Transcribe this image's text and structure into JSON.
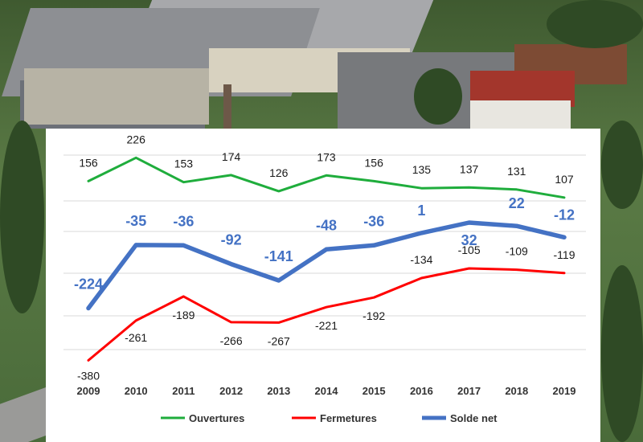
{
  "chart_data": {
    "type": "line",
    "categories": [
      "2009",
      "2010",
      "2011",
      "2012",
      "2013",
      "2014",
      "2015",
      "2016",
      "2017",
      "2018",
      "2019"
    ],
    "series": [
      {
        "name": "Ouvertures",
        "color": "#1fad3c",
        "values": [
          156,
          226,
          153,
          174,
          126,
          173,
          156,
          135,
          137,
          131,
          107
        ]
      },
      {
        "name": "Fermetures",
        "color": "#ff0000",
        "values": [
          -380,
          -261,
          -189,
          -266,
          -267,
          -221,
          -192,
          -134,
          -105,
          -109,
          -119
        ]
      },
      {
        "name": "Solde net",
        "color": "#4472c4",
        "values": [
          -224,
          -35,
          -36,
          -92,
          -141,
          -48,
          -36,
          1,
          32,
          22,
          -12
        ]
      }
    ],
    "ylim": [
      -420,
      270
    ],
    "grid": true,
    "legend": "bottom"
  },
  "background": {
    "description_colors": [
      "#3f5a30",
      "#8d8f93",
      "#a3362c"
    ]
  }
}
